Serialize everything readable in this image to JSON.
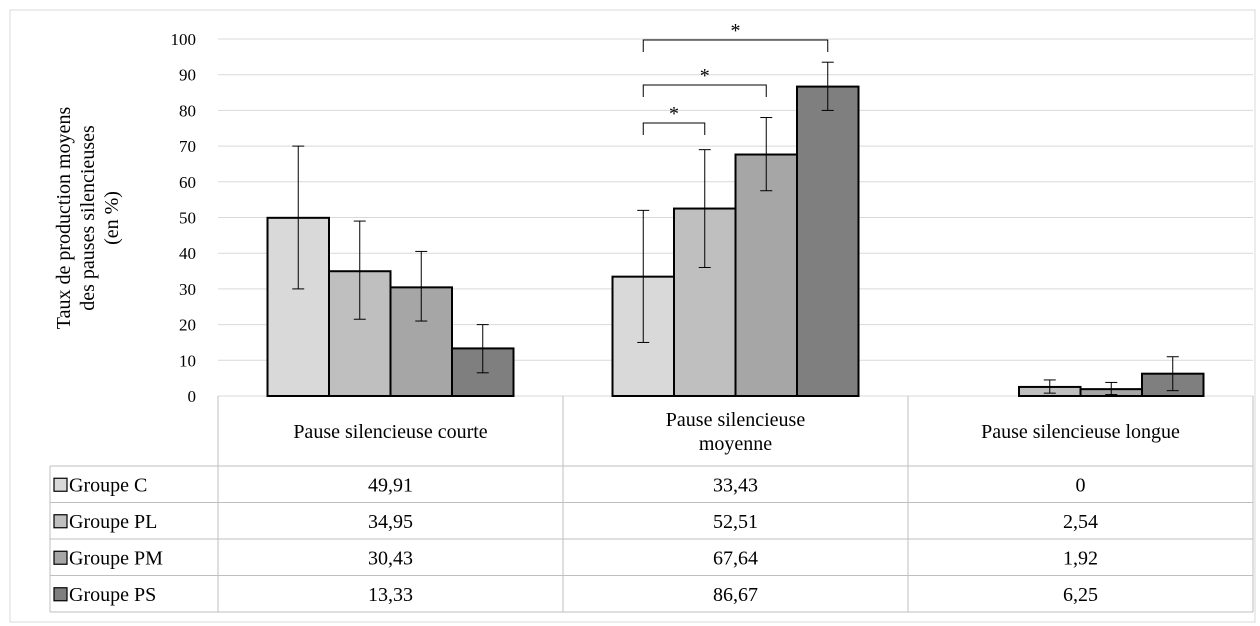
{
  "chart_data": {
    "type": "bar",
    "ylabel_lines": [
      "Taux de production moyens",
      "des pauses silencieuses",
      "(en %)"
    ],
    "ylim": [
      0,
      100
    ],
    "yticks": [
      "0",
      "10",
      "20",
      "30",
      "40",
      "50",
      "60",
      "70",
      "80",
      "90",
      "100"
    ],
    "grid": true,
    "categories": [
      {
        "lines": [
          "Pause silencieuse courte"
        ]
      },
      {
        "lines": [
          "Pause silencieuse",
          "moyenne"
        ]
      },
      {
        "lines": [
          "Pause silencieuse longue"
        ]
      }
    ],
    "series": [
      {
        "name": "Groupe C",
        "color": "#d9d9d9",
        "values": [
          49.91,
          33.43,
          0
        ],
        "labels": [
          "49,91",
          "33,43",
          "0"
        ],
        "err_low": [
          30,
          15,
          0
        ],
        "err_high": [
          70,
          52,
          0
        ]
      },
      {
        "name": "Groupe PL",
        "color": "#bfbfbf",
        "values": [
          34.95,
          52.51,
          2.54
        ],
        "labels": [
          "34,95",
          "52,51",
          "2,54"
        ],
        "err_low": [
          21.5,
          36,
          0.8
        ],
        "err_high": [
          49,
          69,
          4.5
        ]
      },
      {
        "name": "Groupe PM",
        "color": "#a6a6a6",
        "values": [
          30.43,
          67.64,
          1.92
        ],
        "labels": [
          "30,43",
          "67,64",
          "1,92"
        ],
        "err_low": [
          21,
          57.5,
          0.4
        ],
        "err_high": [
          40.5,
          78,
          3.8
        ]
      },
      {
        "name": "Groupe PS",
        "color": "#7f7f7f",
        "values": [
          13.33,
          86.67,
          6.25
        ],
        "labels": [
          "13,33",
          "86,67",
          "6,25"
        ],
        "err_low": [
          6.5,
          80,
          1.5
        ],
        "err_high": [
          20,
          93.5,
          11
        ]
      }
    ],
    "annotations": [
      {
        "category": 1,
        "from_series": 0,
        "to_series": 1,
        "text": "*"
      },
      {
        "category": 1,
        "from_series": 0,
        "to_series": 2,
        "text": "*"
      },
      {
        "category": 1,
        "from_series": 0,
        "to_series": 3,
        "text": "*"
      }
    ]
  }
}
